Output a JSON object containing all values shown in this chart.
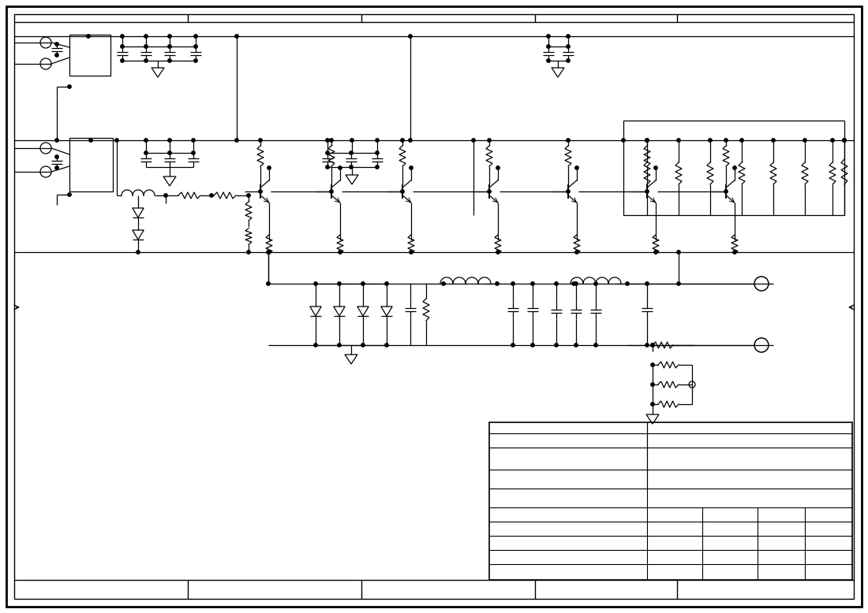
{
  "bg_color": "#ffffff",
  "line_color": "#000000",
  "fig_width": 11.0,
  "fig_height": 7.78,
  "dpi": 100
}
